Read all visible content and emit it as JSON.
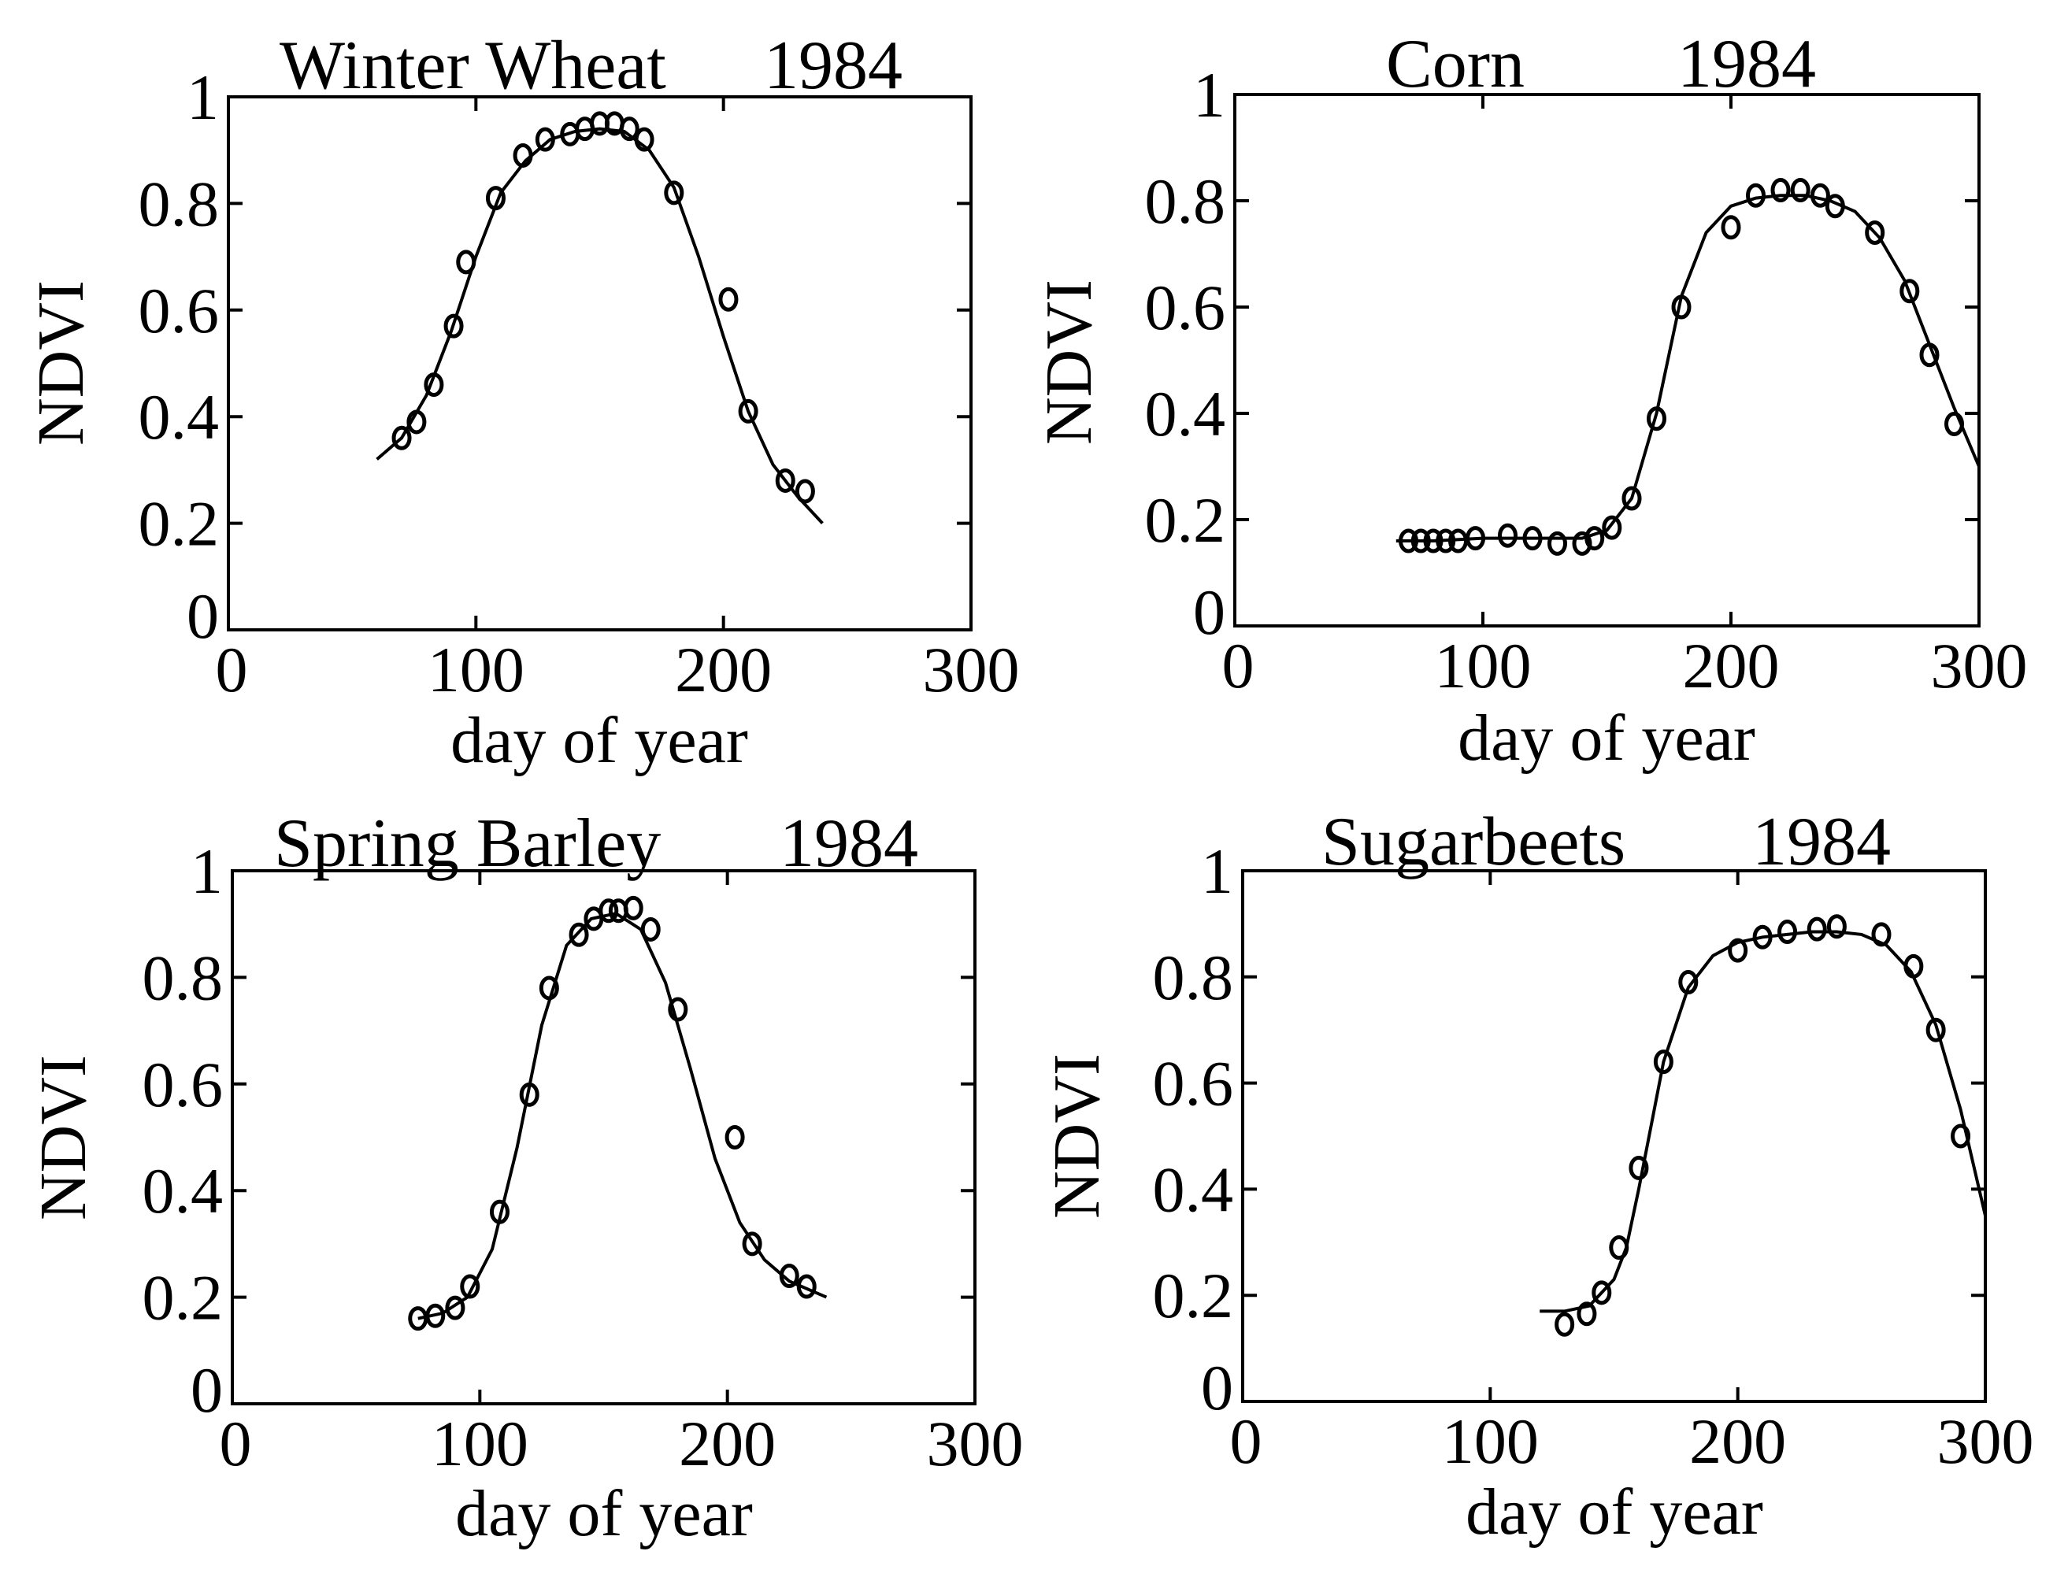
{
  "figure": {
    "colors": {
      "ink": "#000000",
      "background": "#ffffff"
    }
  },
  "chart_data": [
    {
      "type": "scatter",
      "title_crop": "Winter Wheat",
      "title_year": "1984",
      "xlabel": "day of year",
      "ylabel": "NDVI",
      "xlim": [
        0,
        300
      ],
      "ylim": [
        0,
        1
      ],
      "xticks": [
        "0",
        "100",
        "200",
        "300"
      ],
      "yticks": [
        "0",
        "0.2",
        "0.4",
        "0.6",
        "0.8",
        "1"
      ],
      "series": [
        {
          "name": "observed",
          "x": [
            70,
            76,
            83,
            91,
            96,
            108,
            119,
            128,
            138,
            144,
            150,
            156,
            162,
            168,
            180,
            202,
            210,
            225,
            233
          ],
          "y": [
            0.36,
            0.39,
            0.46,
            0.57,
            0.69,
            0.81,
            0.89,
            0.92,
            0.93,
            0.94,
            0.95,
            0.95,
            0.94,
            0.92,
            0.82,
            0.62,
            0.41,
            0.28,
            0.26
          ]
        },
        {
          "name": "fitted",
          "x": [
            60,
            70,
            80,
            90,
            100,
            110,
            120,
            130,
            140,
            150,
            160,
            170,
            180,
            190,
            200,
            210,
            220,
            230,
            240
          ],
          "y": [
            0.32,
            0.36,
            0.44,
            0.56,
            0.7,
            0.82,
            0.88,
            0.92,
            0.935,
            0.94,
            0.935,
            0.9,
            0.83,
            0.7,
            0.55,
            0.41,
            0.31,
            0.25,
            0.2
          ]
        }
      ]
    },
    {
      "type": "scatter",
      "title_crop": "Corn",
      "title_year": "1984",
      "xlabel": "day of year",
      "ylabel": "NDVI",
      "xlim": [
        0,
        300
      ],
      "ylim": [
        0,
        1
      ],
      "xticks": [
        "0",
        "100",
        "200",
        "300"
      ],
      "yticks": [
        "0",
        "0.2",
        "0.4",
        "0.6",
        "0.8",
        "1"
      ],
      "series": [
        {
          "name": "observed",
          "x": [
            70,
            75,
            80,
            85,
            90,
            97,
            110,
            120,
            130,
            140,
            145,
            152,
            160,
            170,
            180,
            200,
            210,
            220,
            228,
            236,
            242,
            258,
            272,
            280,
            290
          ],
          "y": [
            0.16,
            0.16,
            0.16,
            0.16,
            0.16,
            0.165,
            0.17,
            0.165,
            0.155,
            0.155,
            0.165,
            0.185,
            0.24,
            0.39,
            0.6,
            0.75,
            0.81,
            0.82,
            0.82,
            0.81,
            0.79,
            0.74,
            0.63,
            0.51,
            0.38
          ]
        },
        {
          "name": "fitted",
          "x": [
            65,
            80,
            100,
            120,
            140,
            150,
            160,
            170,
            180,
            190,
            200,
            210,
            220,
            230,
            240,
            250,
            260,
            270,
            280,
            290,
            300
          ],
          "y": [
            0.16,
            0.16,
            0.165,
            0.165,
            0.165,
            0.18,
            0.24,
            0.4,
            0.62,
            0.74,
            0.79,
            0.805,
            0.81,
            0.81,
            0.8,
            0.78,
            0.73,
            0.65,
            0.53,
            0.41,
            0.3
          ]
        }
      ]
    },
    {
      "type": "scatter",
      "title_crop": "Spring Barley",
      "title_year": "1984",
      "xlabel": "day of year",
      "ylabel": "NDVI",
      "xlim": [
        0,
        300
      ],
      "ylim": [
        0,
        1
      ],
      "xticks": [
        "0",
        "100",
        "200",
        "300"
      ],
      "yticks": [
        "0",
        "0.2",
        "0.4",
        "0.6",
        "0.8",
        "1"
      ],
      "series": [
        {
          "name": "observed",
          "x": [
            75,
            82,
            90,
            96,
            108,
            120,
            128,
            140,
            146,
            152,
            156,
            162,
            169,
            180,
            203,
            210,
            225,
            232
          ],
          "y": [
            0.16,
            0.165,
            0.18,
            0.22,
            0.36,
            0.58,
            0.78,
            0.88,
            0.91,
            0.925,
            0.925,
            0.93,
            0.89,
            0.74,
            0.5,
            0.3,
            0.24,
            0.22
          ]
        },
        {
          "name": "fitted",
          "x": [
            75,
            85,
            95,
            105,
            115,
            125,
            135,
            145,
            155,
            165,
            175,
            185,
            195,
            205,
            215,
            225,
            235,
            240
          ],
          "y": [
            0.16,
            0.17,
            0.2,
            0.29,
            0.48,
            0.71,
            0.86,
            0.91,
            0.92,
            0.89,
            0.79,
            0.63,
            0.46,
            0.34,
            0.27,
            0.23,
            0.21,
            0.2
          ]
        }
      ]
    },
    {
      "type": "scatter",
      "title_crop": "Sugarbeets",
      "title_year": "1984",
      "xlabel": "day of year",
      "ylabel": "NDVI",
      "xlim": [
        0,
        300
      ],
      "ylim": [
        0,
        1
      ],
      "xticks": [
        "0",
        "100",
        "200",
        "300"
      ],
      "yticks": [
        "0",
        "0.2",
        "0.4",
        "0.6",
        "0.8",
        "1"
      ],
      "series": [
        {
          "name": "observed",
          "x": [
            130,
            139,
            145,
            152,
            160,
            170,
            180,
            200,
            210,
            220,
            232,
            240,
            258,
            271,
            280,
            290
          ],
          "y": [
            0.145,
            0.165,
            0.205,
            0.29,
            0.44,
            0.64,
            0.79,
            0.85,
            0.875,
            0.885,
            0.89,
            0.895,
            0.88,
            0.82,
            0.7,
            0.5
          ]
        },
        {
          "name": "fitted",
          "x": [
            120,
            130,
            140,
            150,
            155,
            160,
            165,
            170,
            180,
            190,
            200,
            210,
            220,
            230,
            240,
            250,
            260,
            270,
            280,
            290,
            300
          ],
          "y": [
            0.17,
            0.17,
            0.18,
            0.23,
            0.29,
            0.4,
            0.52,
            0.64,
            0.78,
            0.84,
            0.865,
            0.875,
            0.88,
            0.885,
            0.885,
            0.88,
            0.86,
            0.81,
            0.71,
            0.55,
            0.35
          ]
        }
      ]
    }
  ]
}
